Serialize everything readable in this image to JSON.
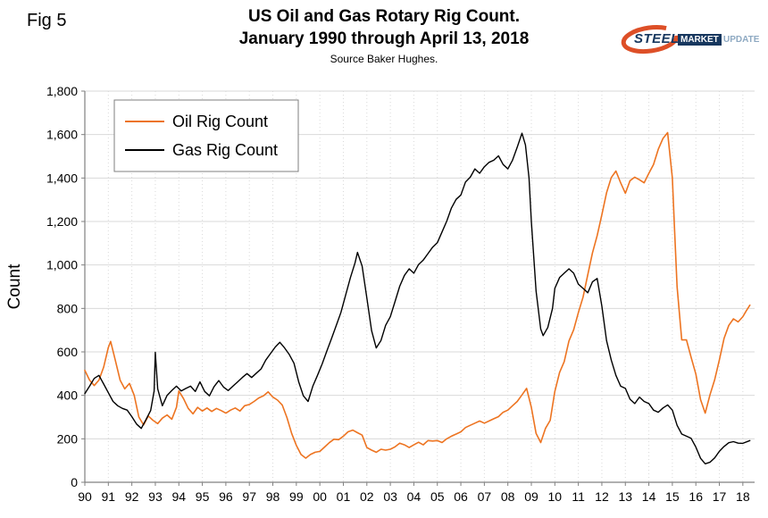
{
  "figure": {
    "fig_label": "Fig 5",
    "title_line1": "US Oil and Gas Rotary Rig Count.",
    "title_line2": "January 1990 through April 13, 2018",
    "source": "Source Baker Hughes."
  },
  "logo": {
    "steel": "STEEL",
    "market": "MARKET",
    "update": "UPDATE",
    "swoosh_color": "#DD4F27"
  },
  "chart_data": {
    "type": "line",
    "title": "US Oil and Gas Rotary Rig Count. January 1990 through April 13, 2018",
    "subtitle": "Source Baker Hughes.",
    "xlabel": "",
    "ylabel": "Count",
    "ylim": [
      0,
      1800
    ],
    "ytick_step": 200,
    "xlim": [
      1990,
      2018.5
    ],
    "x_tick_labels": [
      "90",
      "91",
      "92",
      "93",
      "94",
      "95",
      "96",
      "97",
      "98",
      "99",
      "00",
      "01",
      "02",
      "03",
      "04",
      "05",
      "06",
      "07",
      "08",
      "09",
      "10",
      "11",
      "12",
      "13",
      "14",
      "15",
      "16",
      "17",
      "18"
    ],
    "grid": true,
    "legend_position": "top-left",
    "colors": {
      "grid_major": "#d9d9d9",
      "grid_minor": "#d9d9d9",
      "axis": "#808080"
    },
    "series": [
      {
        "name": "Oil Rig Count",
        "color": "#ED7421",
        "width": 1.6,
        "points": [
          [
            1990.0,
            515
          ],
          [
            1990.2,
            470
          ],
          [
            1990.4,
            445
          ],
          [
            1990.6,
            470
          ],
          [
            1990.8,
            530
          ],
          [
            1991.0,
            620
          ],
          [
            1991.1,
            648
          ],
          [
            1991.3,
            560
          ],
          [
            1991.5,
            470
          ],
          [
            1991.7,
            430
          ],
          [
            1991.9,
            455
          ],
          [
            1992.1,
            400
          ],
          [
            1992.3,
            300
          ],
          [
            1992.5,
            264
          ],
          [
            1992.7,
            305
          ],
          [
            1992.9,
            285
          ],
          [
            1993.1,
            270
          ],
          [
            1993.3,
            295
          ],
          [
            1993.5,
            310
          ],
          [
            1993.7,
            290
          ],
          [
            1993.9,
            345
          ],
          [
            1994.0,
            420
          ],
          [
            1994.2,
            385
          ],
          [
            1994.4,
            340
          ],
          [
            1994.6,
            315
          ],
          [
            1994.8,
            345
          ],
          [
            1995.0,
            328
          ],
          [
            1995.2,
            342
          ],
          [
            1995.4,
            326
          ],
          [
            1995.6,
            340
          ],
          [
            1995.8,
            330
          ],
          [
            1996.0,
            318
          ],
          [
            1996.2,
            332
          ],
          [
            1996.4,
            342
          ],
          [
            1996.6,
            328
          ],
          [
            1996.8,
            352
          ],
          [
            1997.0,
            358
          ],
          [
            1997.2,
            372
          ],
          [
            1997.4,
            388
          ],
          [
            1997.6,
            398
          ],
          [
            1997.8,
            416
          ],
          [
            1998.0,
            392
          ],
          [
            1998.2,
            378
          ],
          [
            1998.4,
            355
          ],
          [
            1998.6,
            298
          ],
          [
            1998.8,
            225
          ],
          [
            1999.0,
            170
          ],
          [
            1999.2,
            128
          ],
          [
            1999.4,
            111
          ],
          [
            1999.6,
            128
          ],
          [
            1999.8,
            138
          ],
          [
            2000.0,
            142
          ],
          [
            2000.2,
            162
          ],
          [
            2000.4,
            182
          ],
          [
            2000.6,
            198
          ],
          [
            2000.8,
            196
          ],
          [
            2001.0,
            212
          ],
          [
            2001.2,
            232
          ],
          [
            2001.4,
            240
          ],
          [
            2001.6,
            228
          ],
          [
            2001.8,
            217
          ],
          [
            2002.0,
            160
          ],
          [
            2002.2,
            148
          ],
          [
            2002.4,
            138
          ],
          [
            2002.6,
            152
          ],
          [
            2002.8,
            148
          ],
          [
            2003.0,
            152
          ],
          [
            2003.2,
            163
          ],
          [
            2003.4,
            180
          ],
          [
            2003.6,
            172
          ],
          [
            2003.8,
            160
          ],
          [
            2004.0,
            172
          ],
          [
            2004.2,
            184
          ],
          [
            2004.4,
            172
          ],
          [
            2004.6,
            192
          ],
          [
            2004.8,
            190
          ],
          [
            2005.0,
            192
          ],
          [
            2005.2,
            183
          ],
          [
            2005.4,
            200
          ],
          [
            2005.6,
            212
          ],
          [
            2005.8,
            222
          ],
          [
            2006.0,
            232
          ],
          [
            2006.2,
            252
          ],
          [
            2006.4,
            262
          ],
          [
            2006.6,
            272
          ],
          [
            2006.8,
            282
          ],
          [
            2007.0,
            272
          ],
          [
            2007.2,
            282
          ],
          [
            2007.4,
            292
          ],
          [
            2007.6,
            302
          ],
          [
            2007.8,
            322
          ],
          [
            2008.0,
            332
          ],
          [
            2008.2,
            352
          ],
          [
            2008.4,
            372
          ],
          [
            2008.6,
            402
          ],
          [
            2008.8,
            432
          ],
          [
            2009.0,
            345
          ],
          [
            2009.2,
            225
          ],
          [
            2009.4,
            183
          ],
          [
            2009.6,
            248
          ],
          [
            2009.8,
            285
          ],
          [
            2010.0,
            418
          ],
          [
            2010.2,
            505
          ],
          [
            2010.4,
            555
          ],
          [
            2010.6,
            650
          ],
          [
            2010.8,
            702
          ],
          [
            2011.0,
            780
          ],
          [
            2011.2,
            852
          ],
          [
            2011.4,
            955
          ],
          [
            2011.6,
            1055
          ],
          [
            2011.8,
            1135
          ],
          [
            2012.0,
            1230
          ],
          [
            2012.2,
            1332
          ],
          [
            2012.4,
            1402
          ],
          [
            2012.6,
            1432
          ],
          [
            2012.8,
            1378
          ],
          [
            2013.0,
            1330
          ],
          [
            2013.2,
            1388
          ],
          [
            2013.4,
            1404
          ],
          [
            2013.6,
            1392
          ],
          [
            2013.8,
            1378
          ],
          [
            2014.0,
            1422
          ],
          [
            2014.2,
            1462
          ],
          [
            2014.4,
            1532
          ],
          [
            2014.6,
            1582
          ],
          [
            2014.8,
            1609
          ],
          [
            2015.0,
            1400
          ],
          [
            2015.1,
            1150
          ],
          [
            2015.2,
            900
          ],
          [
            2015.4,
            655
          ],
          [
            2015.6,
            655
          ],
          [
            2015.8,
            575
          ],
          [
            2016.0,
            498
          ],
          [
            2016.2,
            380
          ],
          [
            2016.4,
            318
          ],
          [
            2016.6,
            402
          ],
          [
            2016.8,
            472
          ],
          [
            2017.0,
            562
          ],
          [
            2017.2,
            662
          ],
          [
            2017.4,
            722
          ],
          [
            2017.6,
            752
          ],
          [
            2017.8,
            738
          ],
          [
            2018.0,
            762
          ],
          [
            2018.15,
            790
          ],
          [
            2018.3,
            815
          ]
        ]
      },
      {
        "name": "Gas Rig Count",
        "color": "#000000",
        "width": 1.4,
        "points": [
          [
            1990.0,
            408
          ],
          [
            1990.2,
            442
          ],
          [
            1990.4,
            478
          ],
          [
            1990.6,
            492
          ],
          [
            1990.8,
            452
          ],
          [
            1991.0,
            412
          ],
          [
            1991.2,
            372
          ],
          [
            1991.4,
            352
          ],
          [
            1991.6,
            340
          ],
          [
            1991.8,
            332
          ],
          [
            1992.0,
            302
          ],
          [
            1992.2,
            268
          ],
          [
            1992.4,
            248
          ],
          [
            1992.6,
            288
          ],
          [
            1992.8,
            330
          ],
          [
            1992.95,
            420
          ],
          [
            1993.0,
            598
          ],
          [
            1993.1,
            430
          ],
          [
            1993.3,
            352
          ],
          [
            1993.5,
            400
          ],
          [
            1993.7,
            422
          ],
          [
            1993.9,
            442
          ],
          [
            1994.1,
            420
          ],
          [
            1994.3,
            432
          ],
          [
            1994.5,
            442
          ],
          [
            1994.7,
            418
          ],
          [
            1994.9,
            462
          ],
          [
            1995.1,
            418
          ],
          [
            1995.3,
            398
          ],
          [
            1995.5,
            440
          ],
          [
            1995.7,
            468
          ],
          [
            1995.9,
            438
          ],
          [
            1996.1,
            422
          ],
          [
            1996.3,
            442
          ],
          [
            1996.5,
            462
          ],
          [
            1996.7,
            482
          ],
          [
            1996.9,
            500
          ],
          [
            1997.1,
            482
          ],
          [
            1997.3,
            502
          ],
          [
            1997.5,
            522
          ],
          [
            1997.7,
            562
          ],
          [
            1997.9,
            592
          ],
          [
            1998.1,
            622
          ],
          [
            1998.3,
            644
          ],
          [
            1998.5,
            618
          ],
          [
            1998.7,
            588
          ],
          [
            1998.9,
            548
          ],
          [
            1999.1,
            462
          ],
          [
            1999.3,
            398
          ],
          [
            1999.5,
            372
          ],
          [
            1999.7,
            442
          ],
          [
            1999.9,
            492
          ],
          [
            2000.1,
            545
          ],
          [
            2000.3,
            605
          ],
          [
            2000.5,
            662
          ],
          [
            2000.7,
            722
          ],
          [
            2000.9,
            782
          ],
          [
            2001.1,
            862
          ],
          [
            2001.3,
            942
          ],
          [
            2001.5,
            1010
          ],
          [
            2001.6,
            1058
          ],
          [
            2001.8,
            995
          ],
          [
            2002.0,
            848
          ],
          [
            2002.2,
            698
          ],
          [
            2002.4,
            618
          ],
          [
            2002.6,
            652
          ],
          [
            2002.8,
            722
          ],
          [
            2003.0,
            762
          ],
          [
            2003.2,
            832
          ],
          [
            2003.4,
            902
          ],
          [
            2003.6,
            952
          ],
          [
            2003.8,
            982
          ],
          [
            2004.0,
            962
          ],
          [
            2004.2,
            1002
          ],
          [
            2004.4,
            1022
          ],
          [
            2004.6,
            1052
          ],
          [
            2004.8,
            1082
          ],
          [
            2005.0,
            1102
          ],
          [
            2005.2,
            1152
          ],
          [
            2005.4,
            1202
          ],
          [
            2005.6,
            1262
          ],
          [
            2005.8,
            1302
          ],
          [
            2006.0,
            1322
          ],
          [
            2006.2,
            1382
          ],
          [
            2006.4,
            1404
          ],
          [
            2006.6,
            1442
          ],
          [
            2006.8,
            1422
          ],
          [
            2007.0,
            1452
          ],
          [
            2007.2,
            1472
          ],
          [
            2007.4,
            1482
          ],
          [
            2007.6,
            1502
          ],
          [
            2007.8,
            1462
          ],
          [
            2008.0,
            1442
          ],
          [
            2008.2,
            1482
          ],
          [
            2008.4,
            1542
          ],
          [
            2008.6,
            1606
          ],
          [
            2008.75,
            1552
          ],
          [
            2008.9,
            1400
          ],
          [
            2009.0,
            1200
          ],
          [
            2009.2,
            880
          ],
          [
            2009.4,
            705
          ],
          [
            2009.5,
            675
          ],
          [
            2009.7,
            712
          ],
          [
            2009.9,
            800
          ],
          [
            2010.0,
            892
          ],
          [
            2010.2,
            942
          ],
          [
            2010.4,
            962
          ],
          [
            2010.6,
            982
          ],
          [
            2010.8,
            962
          ],
          [
            2011.0,
            912
          ],
          [
            2011.2,
            892
          ],
          [
            2011.4,
            872
          ],
          [
            2011.6,
            922
          ],
          [
            2011.8,
            938
          ],
          [
            2012.0,
            812
          ],
          [
            2012.2,
            652
          ],
          [
            2012.4,
            562
          ],
          [
            2012.6,
            492
          ],
          [
            2012.8,
            442
          ],
          [
            2013.0,
            432
          ],
          [
            2013.2,
            382
          ],
          [
            2013.4,
            362
          ],
          [
            2013.6,
            392
          ],
          [
            2013.8,
            372
          ],
          [
            2014.0,
            362
          ],
          [
            2014.2,
            332
          ],
          [
            2014.4,
            322
          ],
          [
            2014.6,
            342
          ],
          [
            2014.8,
            356
          ],
          [
            2015.0,
            332
          ],
          [
            2015.2,
            262
          ],
          [
            2015.4,
            222
          ],
          [
            2015.6,
            212
          ],
          [
            2015.8,
            202
          ],
          [
            2016.0,
            162
          ],
          [
            2016.2,
            110
          ],
          [
            2016.4,
            85
          ],
          [
            2016.6,
            92
          ],
          [
            2016.8,
            112
          ],
          [
            2017.0,
            142
          ],
          [
            2017.2,
            165
          ],
          [
            2017.4,
            182
          ],
          [
            2017.6,
            187
          ],
          [
            2017.8,
            180
          ],
          [
            2018.0,
            179
          ],
          [
            2018.3,
            192
          ]
        ]
      }
    ]
  }
}
